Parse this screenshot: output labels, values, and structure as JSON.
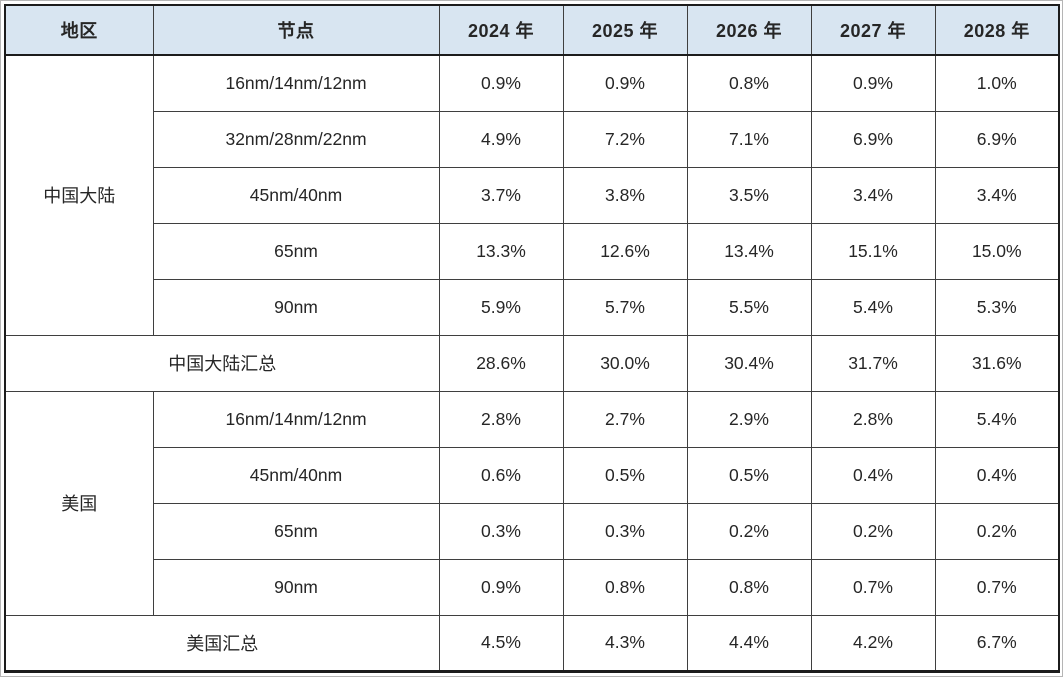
{
  "table": {
    "headers": [
      "地区",
      "节点",
      "2024 年",
      "2025 年",
      "2026 年",
      "2027 年",
      "2028 年"
    ],
    "sections": [
      {
        "region": "中国大陆",
        "rows": [
          {
            "node": "16nm/14nm/12nm",
            "values": [
              "0.9%",
              "0.9%",
              "0.8%",
              "0.9%",
              "1.0%"
            ]
          },
          {
            "node": "32nm/28nm/22nm",
            "values": [
              "4.9%",
              "7.2%",
              "7.1%",
              "6.9%",
              "6.9%"
            ]
          },
          {
            "node": "45nm/40nm",
            "values": [
              "3.7%",
              "3.8%",
              "3.5%",
              "3.4%",
              "3.4%"
            ]
          },
          {
            "node": "65nm",
            "values": [
              "13.3%",
              "12.6%",
              "13.4%",
              "15.1%",
              "15.0%"
            ]
          },
          {
            "node": "90nm",
            "values": [
              "5.9%",
              "5.7%",
              "5.5%",
              "5.4%",
              "5.3%"
            ]
          }
        ],
        "summary": {
          "label": "中国大陆汇总",
          "values": [
            "28.6%",
            "30.0%",
            "30.4%",
            "31.7%",
            "31.6%"
          ]
        }
      },
      {
        "region": "美国",
        "rows": [
          {
            "node": "16nm/14nm/12nm",
            "values": [
              "2.8%",
              "2.7%",
              "2.9%",
              "2.8%",
              "5.4%"
            ]
          },
          {
            "node": "45nm/40nm",
            "values": [
              "0.6%",
              "0.5%",
              "0.5%",
              "0.4%",
              "0.4%"
            ]
          },
          {
            "node": "65nm",
            "values": [
              "0.3%",
              "0.3%",
              "0.2%",
              "0.2%",
              "0.2%"
            ]
          },
          {
            "node": "90nm",
            "values": [
              "0.9%",
              "0.8%",
              "0.8%",
              "0.7%",
              "0.7%"
            ]
          }
        ],
        "summary": {
          "label": "美国汇总",
          "values": [
            "4.5%",
            "4.3%",
            "4.4%",
            "4.2%",
            "6.7%"
          ]
        }
      }
    ],
    "colors": {
      "header_bg": "#d8e5f1",
      "inner_border": "#3f3f3f",
      "outer_border": "#1c1c1c",
      "text": "#262626"
    }
  },
  "chart_data": {
    "type": "table",
    "columns": [
      "地区",
      "节点",
      "2024 年",
      "2025 年",
      "2026 年",
      "2027 年",
      "2028 年"
    ],
    "rows": [
      [
        "中国大陆",
        "16nm/14nm/12nm",
        "0.9%",
        "0.9%",
        "0.8%",
        "0.9%",
        "1.0%"
      ],
      [
        "中国大陆",
        "32nm/28nm/22nm",
        "4.9%",
        "7.2%",
        "7.1%",
        "6.9%",
        "6.9%"
      ],
      [
        "中国大陆",
        "45nm/40nm",
        "3.7%",
        "3.8%",
        "3.5%",
        "3.4%",
        "3.4%"
      ],
      [
        "中国大陆",
        "65nm",
        "13.3%",
        "12.6%",
        "13.4%",
        "15.1%",
        "15.0%"
      ],
      [
        "中国大陆",
        "90nm",
        "5.9%",
        "5.7%",
        "5.5%",
        "5.4%",
        "5.3%"
      ],
      [
        "中国大陆汇总",
        "",
        "28.6%",
        "30.0%",
        "30.4%",
        "31.7%",
        "31.6%"
      ],
      [
        "美国",
        "16nm/14nm/12nm",
        "2.8%",
        "2.7%",
        "2.9%",
        "2.8%",
        "5.4%"
      ],
      [
        "美国",
        "45nm/40nm",
        "0.6%",
        "0.5%",
        "0.5%",
        "0.4%",
        "0.4%"
      ],
      [
        "美国",
        "65nm",
        "0.3%",
        "0.3%",
        "0.2%",
        "0.2%",
        "0.2%"
      ],
      [
        "美国",
        "90nm",
        "0.9%",
        "0.8%",
        "0.8%",
        "0.7%",
        "0.7%"
      ],
      [
        "美国汇总",
        "",
        "4.5%",
        "4.3%",
        "4.4%",
        "4.2%",
        "6.7%"
      ]
    ]
  }
}
